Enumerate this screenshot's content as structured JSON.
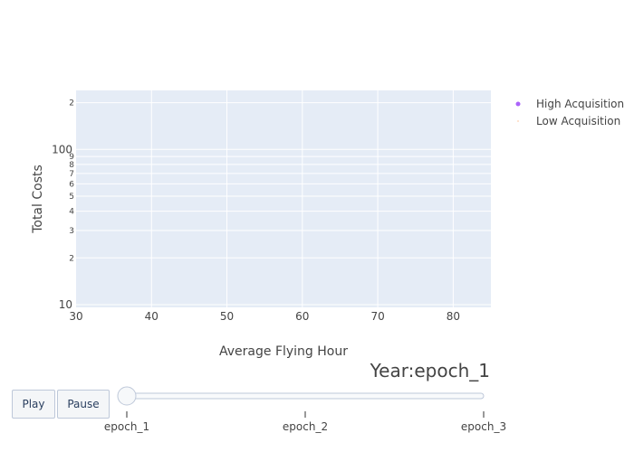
{
  "chart_data": {
    "type": "scatter",
    "xlabel": "Average Flying Hour",
    "ylabel": "Total Costs",
    "x_ticks": [
      "30",
      "40",
      "50",
      "60",
      "70",
      "80"
    ],
    "xlim": [
      30,
      85
    ],
    "y_scale": "log",
    "ylim": [
      9.6,
      240
    ],
    "y_major_ticks": [
      "10",
      "100"
    ],
    "y_minor_ticks": [
      "2",
      "3",
      "4",
      "5",
      "6",
      "7",
      "8",
      "9",
      "2"
    ],
    "grid": true,
    "legend_position": "top-right",
    "series": [
      {
        "name": "High Acquisition",
        "color": "#ab63fa",
        "x": [],
        "y": []
      },
      {
        "name": "Low Acquisition",
        "color": "#ffa15a",
        "x": [],
        "y": []
      }
    ],
    "plot_background": "#e5ecf6"
  },
  "animation": {
    "current_frame_label": "Year:epoch_1",
    "play_label": "Play",
    "pause_label": "Pause",
    "steps": [
      "epoch_1",
      "epoch_2",
      "epoch_3"
    ],
    "active_step": 0
  }
}
